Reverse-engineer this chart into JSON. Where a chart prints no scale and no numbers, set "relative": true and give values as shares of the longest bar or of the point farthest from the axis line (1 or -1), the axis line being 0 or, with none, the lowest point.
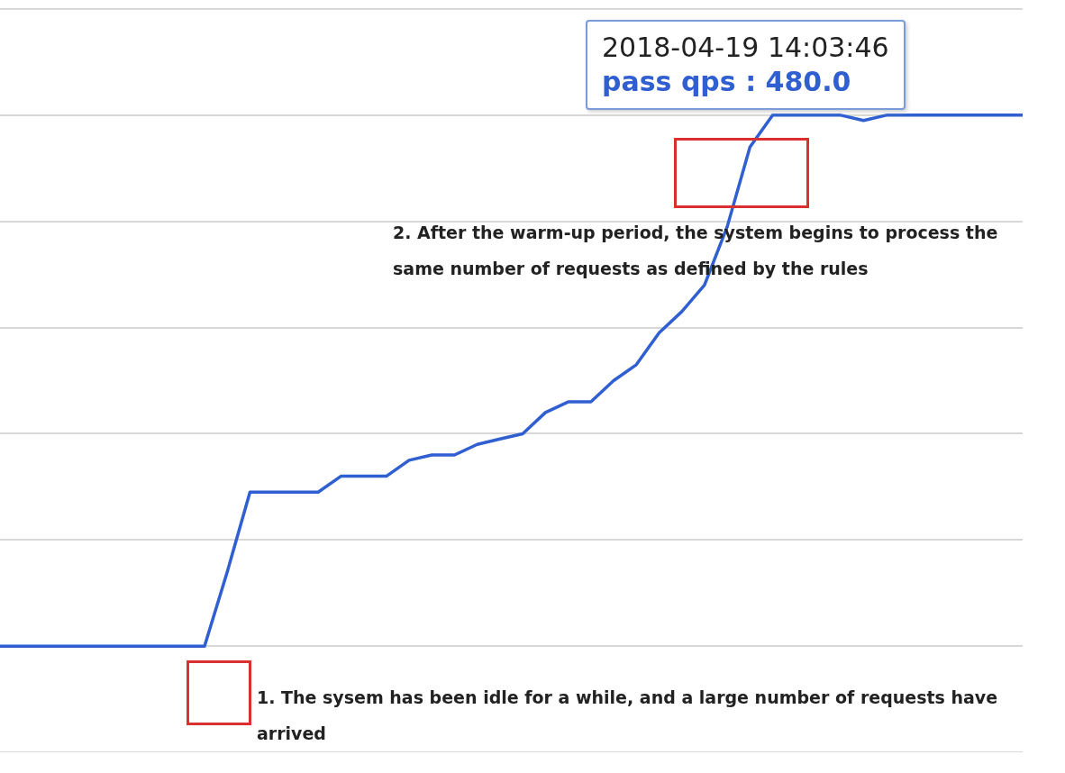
{
  "chart_data": {
    "type": "line",
    "relative": true,
    "grid": "y",
    "legend": false,
    "marker": "none",
    "line_style": "solid",
    "categories": [
      null,
      null,
      null,
      null,
      null,
      null,
      null,
      null,
      null,
      null,
      null,
      null,
      null,
      null,
      null,
      null,
      null,
      null,
      null,
      null,
      null,
      null,
      null,
      null,
      null,
      null,
      null,
      null,
      null,
      null,
      null,
      null,
      null,
      null,
      null,
      null,
      null,
      null,
      null,
      null,
      null,
      null,
      null,
      null,
      null,
      null
    ],
    "series": [
      {
        "color": "#2f5fd0",
        "values": [
          0,
          0,
          0,
          0,
          0,
          0,
          0,
          0,
          0,
          0,
          0.14,
          0.29,
          0.29,
          0.29,
          0.29,
          0.32,
          0.32,
          0.32,
          0.35,
          0.36,
          0.36,
          0.38,
          0.39,
          0.4,
          0.44,
          0.46,
          0.46,
          0.5,
          0.53,
          0.59,
          0.63,
          0.68,
          0.79,
          0.94,
          1,
          1,
          1,
          1,
          0.99,
          1,
          1,
          1,
          1,
          1,
          1,
          1
        ]
      }
    ],
    "annotations": [
      "2018-04-19 14:03:46",
      "pass qps : 480.0",
      "2. After the warm-up period, the system begins to process the same number of requests as defined by the rules",
      "1. The sysem has been idle for a while, and a large number of requests have arrived"
    ]
  }
}
